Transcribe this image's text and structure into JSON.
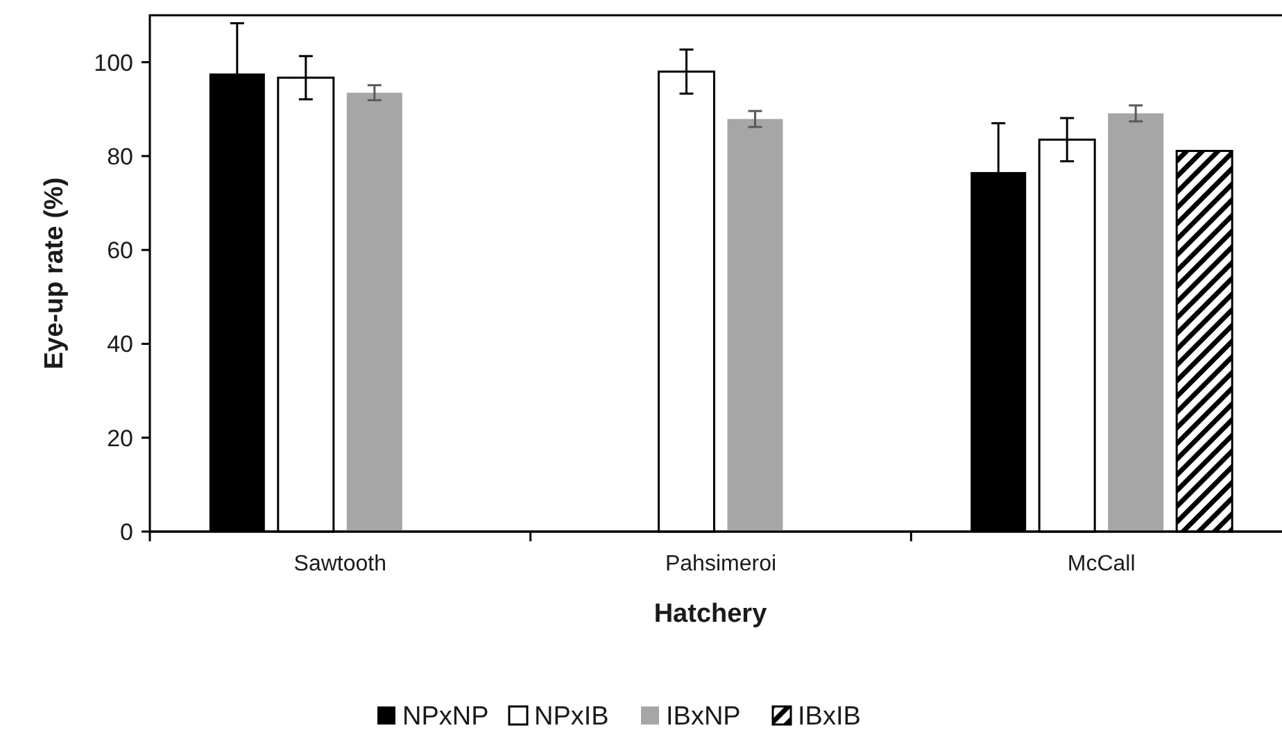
{
  "chart_data": {
    "type": "bar",
    "xlabel": "Hatchery",
    "ylabel": "Eye-up rate (%)",
    "categories": [
      "Sawtooth",
      "Pahsimeroi",
      "McCall"
    ],
    "series": [
      {
        "name": "NPxNP",
        "color": "#000000",
        "values": [
          97.6,
          null,
          76.6
        ],
        "errors": [
          10.7,
          null,
          10.4
        ]
      },
      {
        "name": "NPxIB",
        "color": "#ffffff",
        "values": [
          96.7,
          98.0,
          83.5
        ],
        "errors": [
          4.6,
          4.7,
          4.6
        ]
      },
      {
        "name": "IBxNP",
        "color": "#a6a6a6",
        "values": [
          93.5,
          87.9,
          89.1
        ],
        "errors": [
          1.6,
          1.7,
          1.7
        ]
      },
      {
        "name": "IBxIB",
        "color": "#000000",
        "values": [
          null,
          null,
          81.1
        ]
      }
    ],
    "ylim": [
      0,
      110
    ],
    "yticks": [
      0,
      20,
      40,
      60,
      80,
      100
    ],
    "grid": false,
    "legend": "bottom"
  }
}
